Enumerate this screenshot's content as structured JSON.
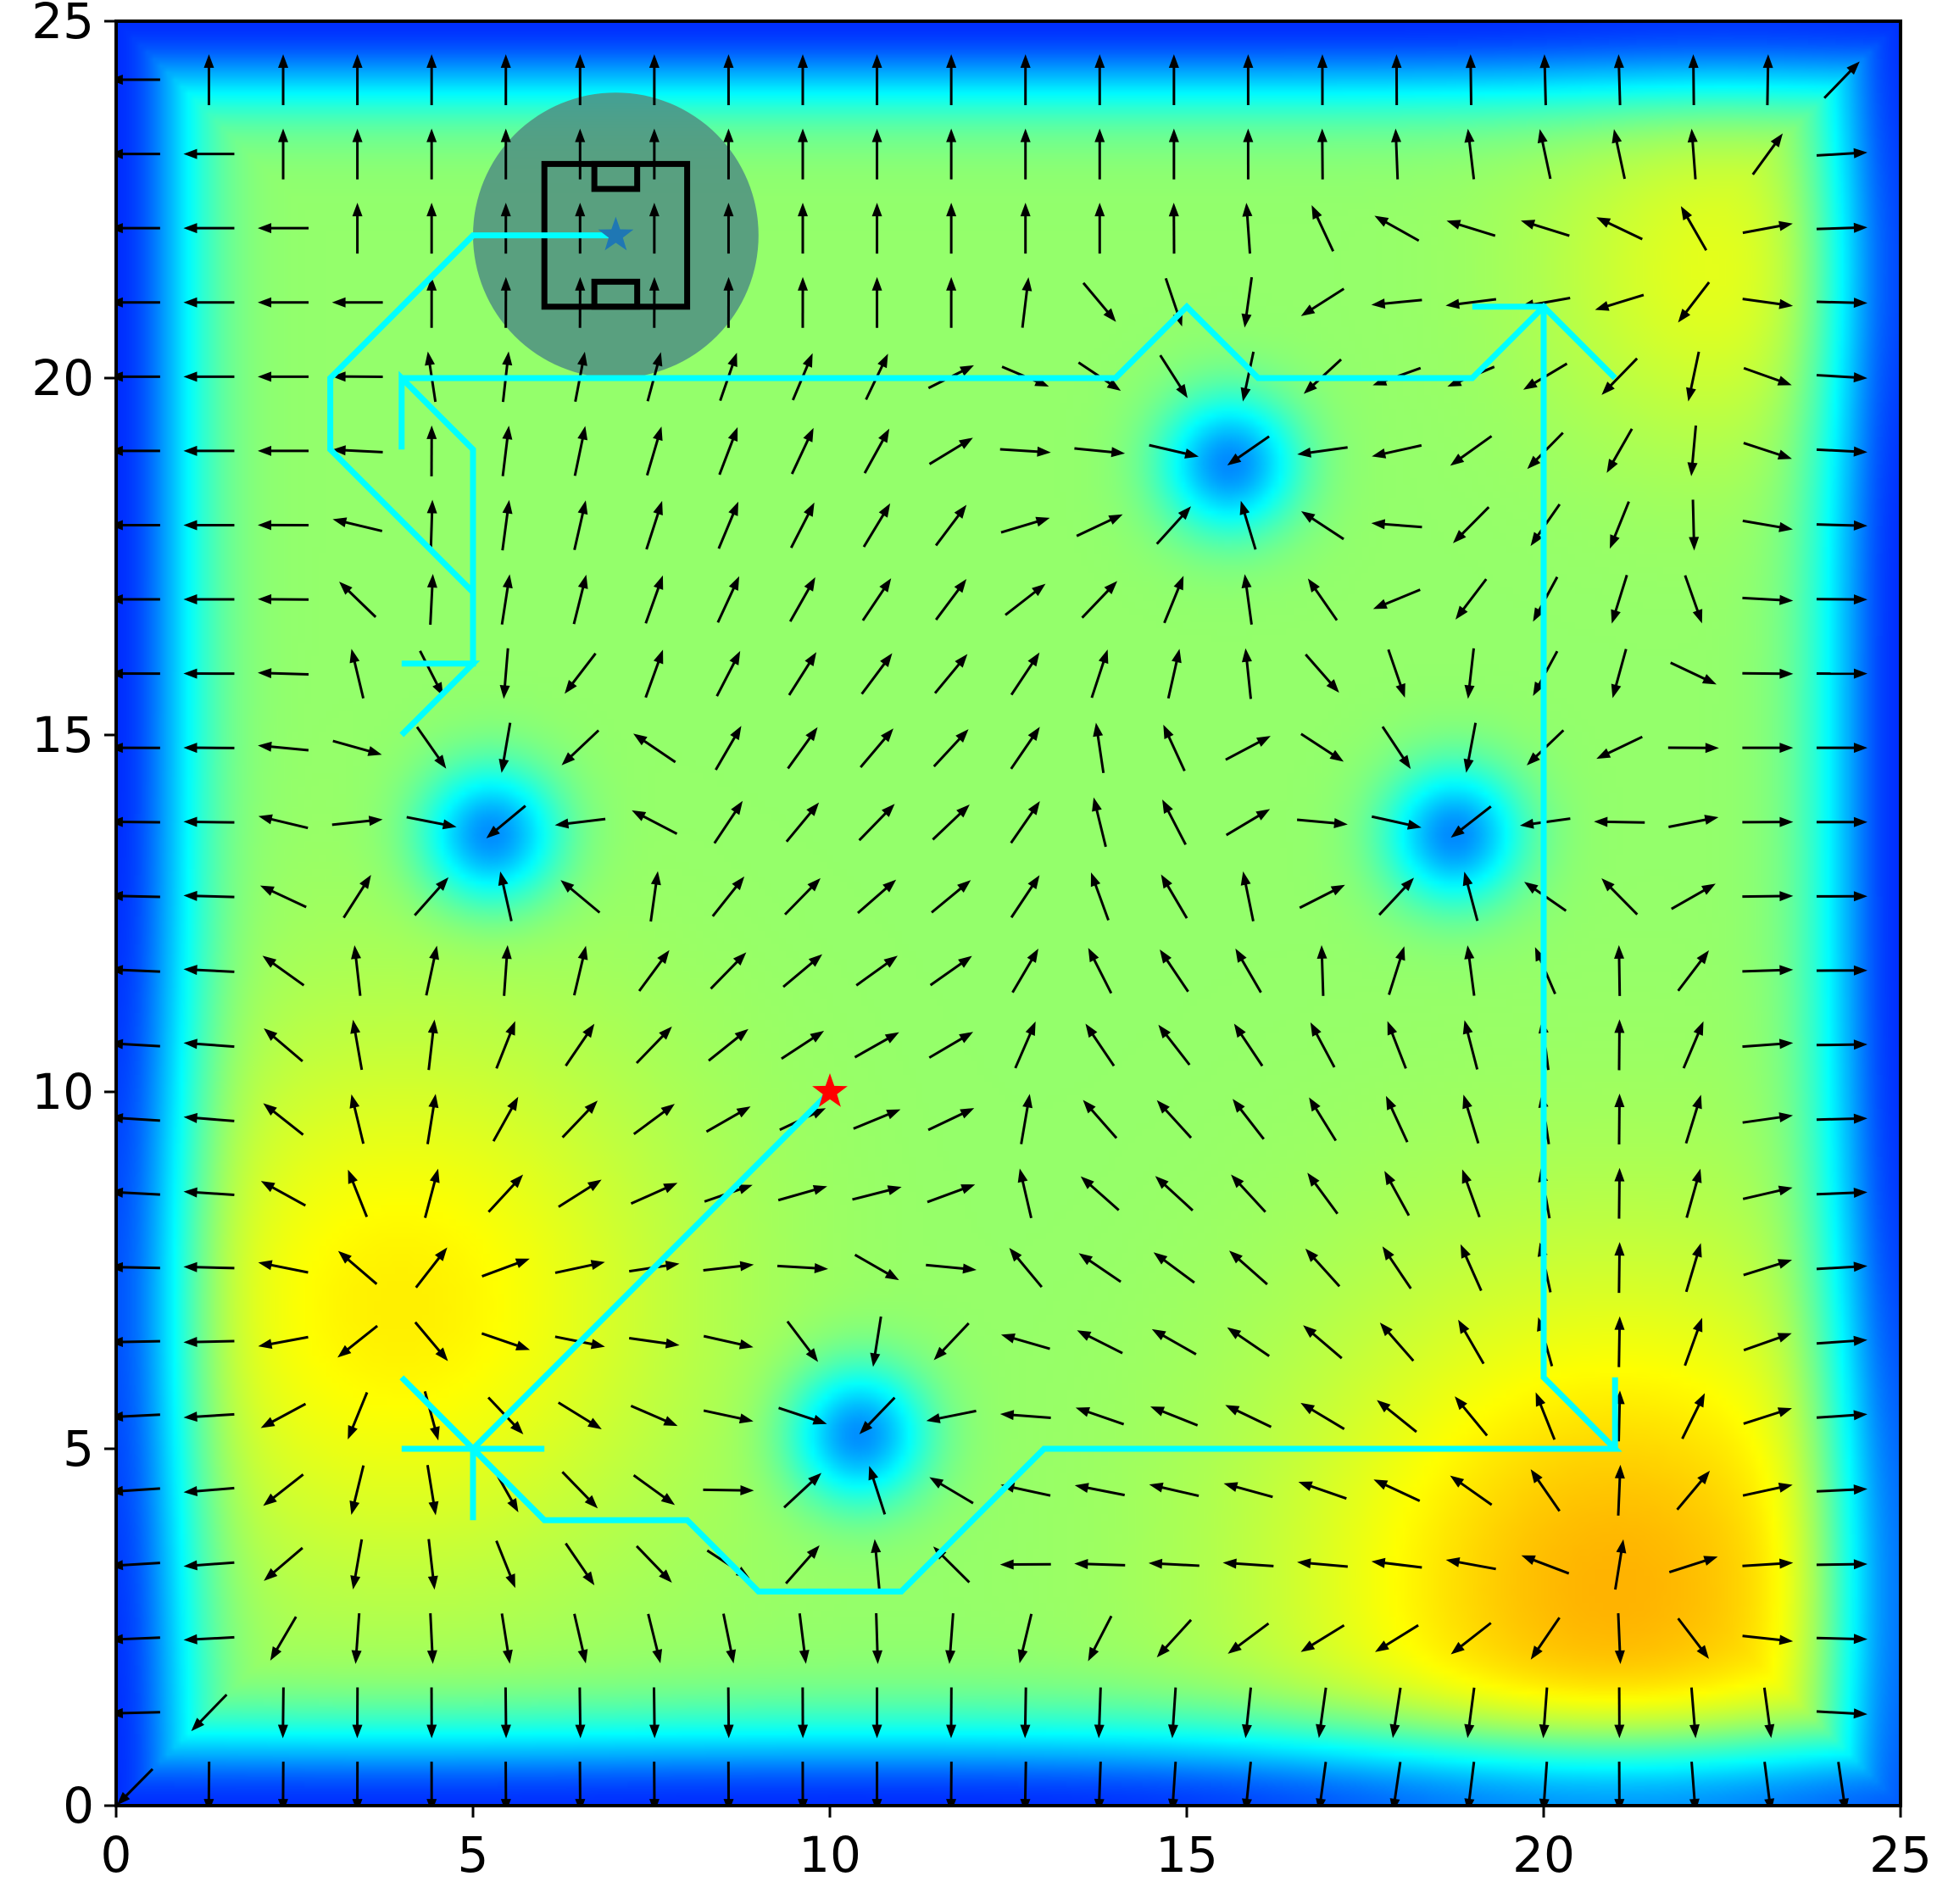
{
  "chart_data": {
    "type": "vector-field-heatmap",
    "title": "",
    "xlabel": "",
    "ylabel": "",
    "xlim": [
      0,
      25
    ],
    "ylim": [
      0,
      25
    ],
    "xticks": [
      0,
      5,
      10,
      15,
      20,
      25
    ],
    "yticks": [
      0,
      5,
      10,
      15,
      20,
      25
    ],
    "xtick_labels": [
      "0",
      "5",
      "10",
      "15",
      "20",
      "25"
    ],
    "ytick_labels": [
      "0",
      "5",
      "10",
      "15",
      "20",
      "25"
    ],
    "grid": false,
    "colormap": "jet",
    "potential_minima": [
      {
        "x": 5.25,
        "y": 13.6
      },
      {
        "x": 18.75,
        "y": 13.6
      },
      {
        "x": 15.6,
        "y": 18.8
      },
      {
        "x": 10.4,
        "y": 5.2
      }
    ],
    "warm_region": {
      "x": 21,
      "y": 3
    },
    "arrow_grid": {
      "start": 0.26,
      "step": 1.04,
      "count": 24
    },
    "path": {
      "color": "#00ffff",
      "points": [
        [
          10,
          10
        ],
        [
          5,
          5
        ],
        [
          6,
          4
        ],
        [
          8,
          4
        ],
        [
          9,
          3
        ],
        [
          11,
          3
        ],
        [
          13,
          5
        ],
        [
          21,
          5
        ],
        [
          20,
          6
        ],
        [
          20,
          21
        ],
        [
          19,
          21
        ],
        [
          20,
          21
        ],
        [
          21,
          20
        ],
        [
          20,
          21
        ],
        [
          19,
          20
        ],
        [
          16,
          20
        ],
        [
          15,
          21
        ],
        [
          14,
          20
        ],
        [
          4,
          20
        ],
        [
          4,
          19
        ],
        [
          4,
          20
        ],
        [
          5,
          19
        ],
        [
          5,
          16
        ],
        [
          4,
          15
        ],
        [
          5,
          16
        ],
        [
          4,
          16
        ],
        [
          5,
          16
        ],
        [
          5,
          17
        ],
        [
          3,
          19
        ],
        [
          3,
          20
        ],
        [
          5,
          22
        ],
        [
          7,
          22
        ]
      ],
      "extra_segments": [
        [
          [
            5,
            5
          ],
          [
            4,
            6
          ]
        ],
        [
          [
            5,
            5
          ],
          [
            4,
            5
          ]
        ],
        [
          [
            5,
            5
          ],
          [
            6,
            5
          ]
        ],
        [
          [
            5,
            5
          ],
          [
            5,
            4
          ]
        ],
        [
          [
            21,
            5
          ],
          [
            21,
            6
          ]
        ]
      ]
    },
    "start_marker": {
      "x": 10,
      "y": 10,
      "shape": "star",
      "color": "#ff0000"
    },
    "goal_marker": {
      "x": 7,
      "y": 22,
      "shape": "star",
      "color": "#1f77b4"
    },
    "goal_zone": {
      "x": 7,
      "y": 22,
      "radius": 2,
      "color": "#4f8f82"
    },
    "goal_pitch": {
      "x0": 6,
      "y0": 21,
      "x1": 8,
      "y1": 23
    }
  }
}
